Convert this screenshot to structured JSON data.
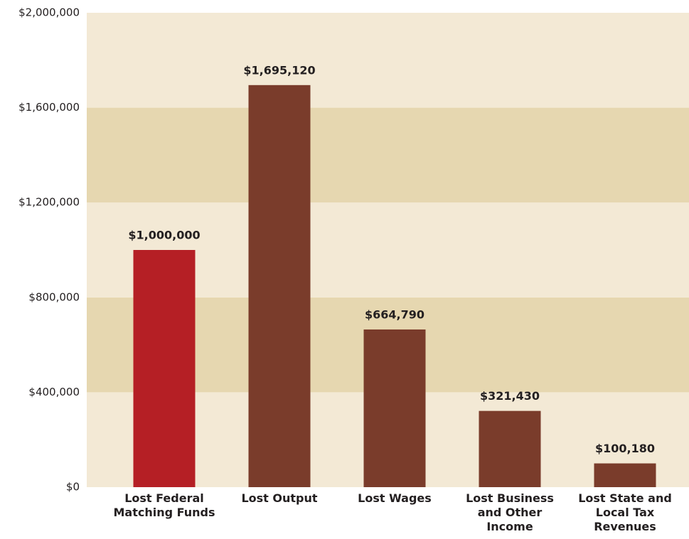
{
  "chart_data": {
    "type": "bar",
    "categories": [
      "Lost Federal Matching Funds",
      "Lost Output",
      "Lost Wages",
      "Lost Business and Other Income",
      "Lost State and Local Tax Revenues"
    ],
    "values": [
      1000000,
      1695120,
      664790,
      321430,
      100180
    ],
    "value_labels": [
      "$1,000,000",
      "$1,695,120",
      "$664,790",
      "$321,430",
      "$100,180"
    ],
    "colors": [
      "#b51f25",
      "#7a3c2b",
      "#7a3c2b",
      "#7a3c2b",
      "#7a3c2b"
    ],
    "ylim": [
      0,
      2000000
    ],
    "yticks": [
      {
        "value": 0,
        "label": "$0"
      },
      {
        "value": 400000,
        "label": "$400,000"
      },
      {
        "value": 800000,
        "label": "$800,000"
      },
      {
        "value": 1200000,
        "label": "$1,200,000"
      },
      {
        "value": 1600000,
        "label": "$1,600,000"
      },
      {
        "value": 2000000,
        "label": "$2,000,000"
      }
    ],
    "band_colors": [
      "#f3e9d5",
      "#e6d7b0"
    ]
  }
}
